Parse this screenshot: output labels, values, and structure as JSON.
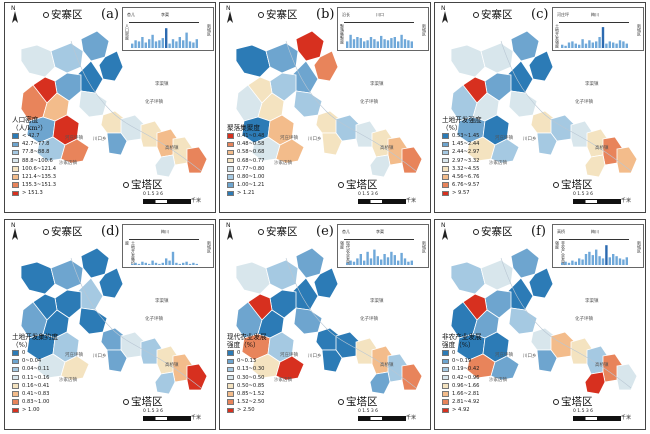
{
  "palette": {
    "p6": [
      "#2c7bb6",
      "#6fa8d2",
      "#abd9e9",
      "#e3ecd3",
      "#fdd49e",
      "#f4a582",
      "#e26a4a",
      "#d7301f"
    ],
    "p8a": [
      "#2c7bb6",
      "#6ea5cf",
      "#a5c9e2",
      "#d8e6ec",
      "#f4e3c0",
      "#f3bc8b",
      "#e8845b",
      "#d7301f"
    ],
    "p8b": [
      "#d7301f",
      "#e8845b",
      "#f3bc8b",
      "#f4e3c0",
      "#d8e6ec",
      "#a5c9e2",
      "#6ea5cf",
      "#2c7bb6"
    ],
    "bar": "#6fa8d9",
    "bar_dark": "#2c6ab0"
  },
  "common": {
    "north_label": "N",
    "town_top": "安寨区",
    "town_bottom": "宝塔区",
    "scale_ticks": "0 1.5 3   6",
    "scale_unit": "千米",
    "small_towns": [
      "河庄坪镇",
      "川口乡",
      "李渠镇",
      "化子坪镇",
      "沙家店镇",
      "高桥镇",
      "坪桥镇",
      "招安镇",
      "枣林坪镇",
      "镰刀湾镇"
    ]
  },
  "panels": [
    {
      "letter": "(a)",
      "legend_title": "人口密度\n（人/km²）",
      "legend": [
        "< 42.7",
        "42.7~77.8",
        "77.8~88.8",
        "88.8~100.6",
        "100.6~121.4",
        "121.4~135.3",
        "135.3~151.3",
        "> 151.3"
      ],
      "inset_labels": [
        "杏儿",
        "李渠"
      ],
      "inset_side": "新城区",
      "inset_yaxis": "人口密度"
    },
    {
      "letter": "(b)",
      "legend_title": "聚落集聚度",
      "legend": [
        "0.41~0.48",
        "0.48~0.58",
        "0.58~0.68",
        "0.68~0.77",
        "0.77~0.80",
        "0.80~1.00",
        "1.00~1.21",
        "> 1.21"
      ],
      "inset_labels": [
        "沿长",
        "川口"
      ],
      "inset_side": "新城区",
      "inset_yaxis": "聚落集聚度"
    },
    {
      "letter": "(c)",
      "legend_title": "土地开发强度\n（%）",
      "legend": [
        "0.53~1.45",
        "1.45~2.44",
        "2.44~2.97",
        "2.97~3.32",
        "3.32~4.55",
        "4.56~6.76",
        "6.76~9.57",
        "> 9.57"
      ],
      "inset_labels": [
        "河庄坪",
        "梅川"
      ],
      "inset_side": "新城区",
      "inset_yaxis": "土地开发强度"
    },
    {
      "letter": "(d)",
      "legend_title": "土地开发集约度\n（%）",
      "legend": [
        "0",
        "0~0.04",
        "0.04~0.11",
        "0.11~0.16",
        "0.16~0.41",
        "0.41~0.83",
        "0.83~1.00",
        "> 1.00"
      ],
      "inset_labels": [
        "",
        "梅川"
      ],
      "inset_side": "新城区",
      "inset_yaxis": "土地开发集约度"
    },
    {
      "letter": "(e)",
      "legend_title": "现代农业发展\n强度（%）",
      "legend": [
        "0",
        "0~0.13",
        "0.13~0.30",
        "0.30~0.50",
        "0.50~0.85",
        "0.85~1.52",
        "1.52~2.50",
        "> 2.50"
      ],
      "inset_labels": [
        "杏儿",
        "李渠"
      ],
      "inset_side": "新城区",
      "inset_yaxis": "现代农业发展强度"
    },
    {
      "letter": "(f)",
      "legend_title": "非农产业发展\n强度（%）",
      "legend": [
        "0",
        "0~0.19",
        "0.19~0.42",
        "0.42~0.96",
        "0.96~1.66",
        "1.66~2.81",
        "2.81~4.92",
        "> 4.92"
      ],
      "inset_labels": [
        "高桥",
        "梅川"
      ],
      "inset_side": "新城区",
      "inset_yaxis": "非农产业发展强度"
    }
  ]
}
